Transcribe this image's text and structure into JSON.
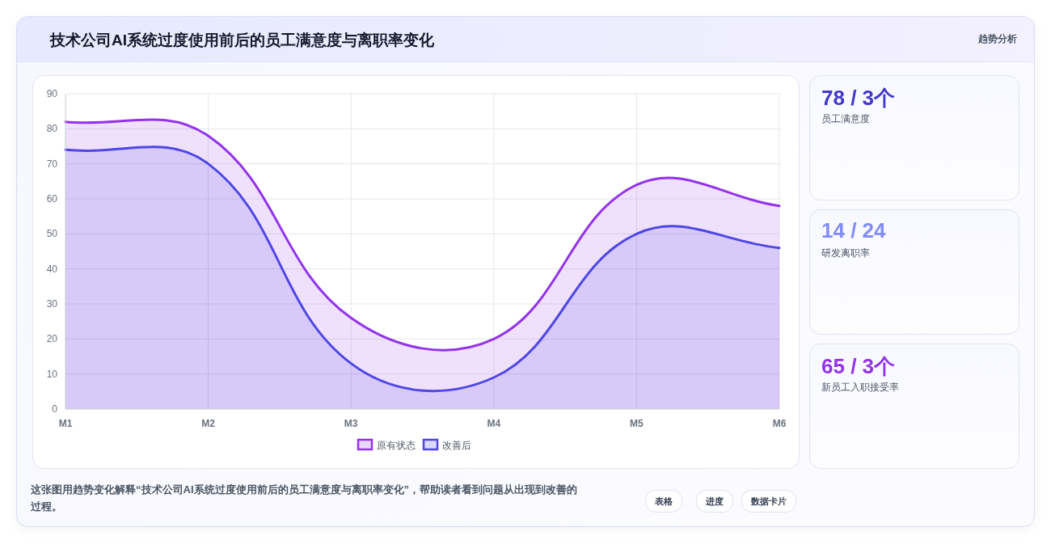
{
  "chart_data": [
    {
      "type": "area",
      "title": "技术公司AI系统过度使用前后的员工满意度与离职率变化",
      "categories": [
        "M1",
        "M2",
        "M3",
        "M4",
        "M5",
        "M6"
      ],
      "series": [
        {
          "name": "原有状态",
          "color": "#9333ea",
          "values": [
            82,
            78,
            26,
            20,
            64,
            58
          ]
        },
        {
          "name": "改善后",
          "color": "#4f46e5",
          "values": [
            74,
            70,
            13,
            9,
            50,
            46
          ]
        }
      ],
      "ylim": [
        0,
        90
      ],
      "yticks": [
        0,
        10,
        20,
        30,
        40,
        50,
        60,
        70,
        80,
        90
      ],
      "grid": true,
      "legend": "bottom",
      "marker": "none",
      "line_style": "solid",
      "annotations": [
        "趋势分析",
        "这张图用趋势变化解释“技术公司AI系统过度使用前后的员工满意度与离职率变化”，帮助读者看到问题从出现到改善的过程。",
        "表格",
        "进度",
        "数据卡片"
      ]
    },
    {
      "type": "other",
      "annotations": [
        "78 / 3个",
        "员工满意度",
        "14 / 24",
        "研发离职率",
        "65 / 3个",
        "新员工入职接受率"
      ],
      "colors": [
        "#4338ca",
        "#818cf8",
        "#9333ea"
      ]
    }
  ]
}
